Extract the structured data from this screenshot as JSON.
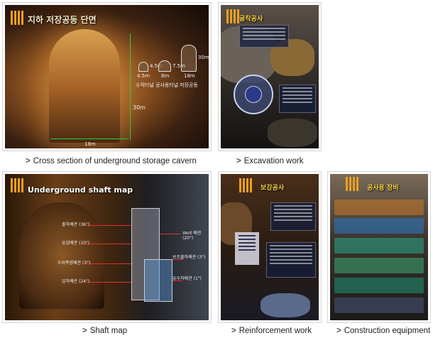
{
  "gallery": {
    "items": [
      {
        "caption": "Cross section of underground storage cavern",
        "thumb_title": "지하 저장공동 단면",
        "labels": {
          "h_30m_side": "30m",
          "h_30m_right": "30m",
          "w_18m": "18m",
          "p1_w": "4.5m",
          "p1_h": "4.5m",
          "p1_name": "수직터널",
          "p2_w": "8m",
          "p2_name": "공사용터널",
          "p3_w": "18m",
          "p3_h": "7.5m",
          "p3_name": "저장공동"
        }
      },
      {
        "caption": "Excavation work",
        "thumb_title": "굴착공사"
      },
      {
        "caption": "Shaft map",
        "thumb_title": "Underground shaft map",
        "labels": {
          "l1": "출하배관 (36\")",
          "l2": "유입배관 (10\")",
          "l3": "수위측정배관 (3\")",
          "l4": "입하배관 (24\")",
          "r1": "Vent 배관 (20\")",
          "r2": "보조출하배관 (3\")",
          "r3": "유수처배관 (1\")"
        }
      },
      {
        "caption": "Reinforcement work",
        "thumb_title": "보강공사"
      },
      {
        "caption": "Construction equipment",
        "thumb_title": "공사용 장비"
      }
    ]
  },
  "colors": {
    "accent_stripe": "#e8a020",
    "measure_line": "#2ecc40",
    "shaft_arrow": "#e03030",
    "caption_text": "#222222",
    "card_border": "#d6d6d6"
  }
}
